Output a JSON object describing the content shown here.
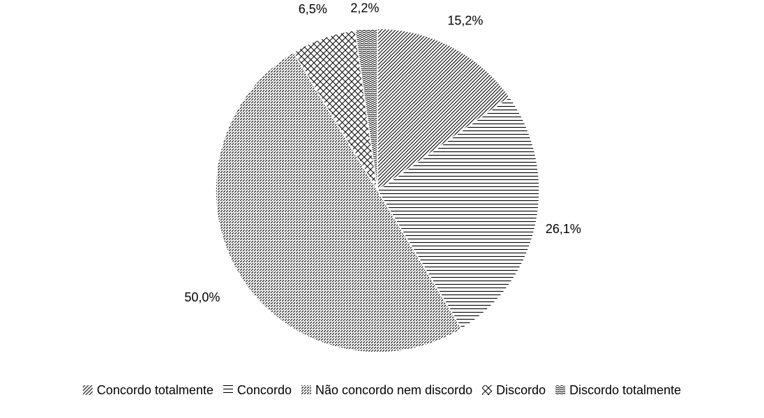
{
  "chart_data": {
    "type": "pie",
    "start_angle_deg": 0,
    "direction": "clockwise",
    "legend_position": "bottom",
    "slices": [
      {
        "label": "Concordo totalmente",
        "value": 15.2,
        "display": "15,2%",
        "pattern": "diagonal-lines"
      },
      {
        "label": "Concordo",
        "value": 26.1,
        "display": "26,1%",
        "pattern": "horizontal-lines"
      },
      {
        "label": "Não concordo nem discordo",
        "value": 50.0,
        "display": "50,0%",
        "pattern": "dashed-diagonal-lines"
      },
      {
        "label": "Discordo",
        "value": 6.5,
        "display": "6,5%",
        "pattern": "diagonal-crosshatch"
      },
      {
        "label": "Discordo totalmente",
        "value": 2.2,
        "display": "2,2%",
        "pattern": "zigzag-lines"
      }
    ],
    "colors": {
      "stroke": "#000000",
      "background": "#ffffff"
    }
  }
}
